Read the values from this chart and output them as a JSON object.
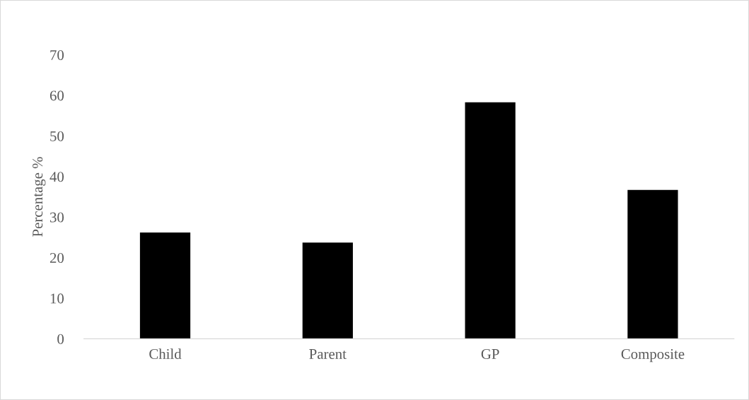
{
  "chart_data": {
    "type": "bar",
    "ylabel": "Percentage %",
    "categories": [
      "Child",
      "Parent",
      "GP",
      "Composite"
    ],
    "values": [
      26.2,
      23.7,
      58.3,
      36.7
    ],
    "color": "#000000",
    "ylim": [
      0,
      70
    ],
    "yticks": [
      0,
      10,
      20,
      30,
      40,
      50,
      60,
      70
    ],
    "grid": false,
    "legend": false
  }
}
